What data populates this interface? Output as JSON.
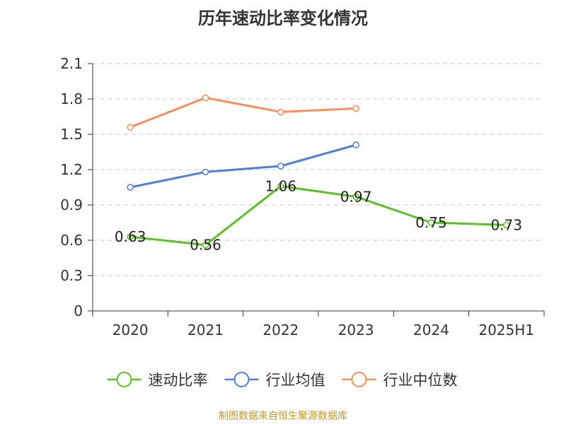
{
  "chart_data": {
    "type": "line",
    "title": "历年速动比率变化情况",
    "categories": [
      "2020",
      "2021",
      "2022",
      "2023",
      "2024",
      "2025H1"
    ],
    "ylim": [
      0,
      2.1
    ],
    "yticks": [
      "0",
      "0.3",
      "0.6",
      "0.9",
      "1.2",
      "1.5",
      "1.8",
      "2.1"
    ],
    "grid": true,
    "legend_position": "bottom",
    "series": [
      {
        "name": "速动比率",
        "color": "#5cbf2a",
        "values": [
          0.63,
          0.56,
          1.06,
          0.97,
          0.75,
          0.73
        ],
        "labels": [
          "0.63",
          "0.56",
          "1.06",
          "0.97",
          "0.75",
          "0.73"
        ]
      },
      {
        "name": "行业均值",
        "color": "#4f7fd6",
        "values": [
          1.05,
          1.18,
          1.23,
          1.41,
          null,
          null
        ]
      },
      {
        "name": "行业中位数",
        "color": "#f7905c",
        "values": [
          1.56,
          1.81,
          1.69,
          1.72,
          null,
          null
        ]
      }
    ]
  },
  "source": "制图数据来自恒生聚源数据库"
}
